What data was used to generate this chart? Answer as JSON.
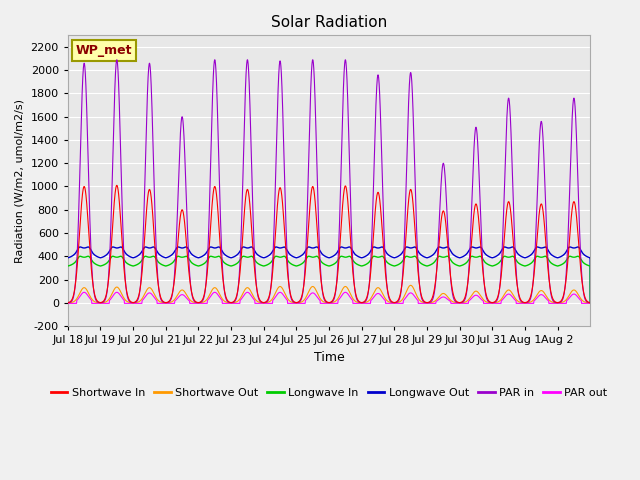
{
  "title": "Solar Radiation",
  "xlabel": "Time",
  "ylabel": "Radiation (W/m2, umol/m2/s)",
  "ylim": [
    -200,
    2300
  ],
  "yticks": [
    -200,
    0,
    200,
    400,
    600,
    800,
    1000,
    1200,
    1400,
    1600,
    1800,
    2000,
    2200
  ],
  "station_label": "WP_met",
  "num_days": 16,
  "xtick_labels": [
    "Jul 18",
    "Jul 19",
    "Jul 20",
    "Jul 21",
    "Jul 22",
    "Jul 23",
    "Jul 24",
    "Jul 25",
    "Jul 26",
    "Jul 27",
    "Jul 28",
    "Jul 29",
    "Jul 30",
    "Jul 31",
    "Aug 1",
    "Aug 2"
  ],
  "colors": {
    "shortwave_in": "#ff0000",
    "shortwave_out": "#ff9900",
    "longwave_in": "#00cc00",
    "longwave_out": "#0000cc",
    "par_in": "#9900cc",
    "par_out": "#ff00ff"
  },
  "legend_labels": [
    "Shortwave In",
    "Shortwave Out",
    "Longwave In",
    "Longwave Out",
    "PAR in",
    "PAR out"
  ],
  "background_color": "#e8e8e8",
  "grid_color": "#ffffff",
  "shortwave_in_peaks": [
    1000,
    1010,
    975,
    800,
    1000,
    975,
    990,
    1000,
    1005,
    950,
    975,
    790,
    850,
    870,
    850,
    870
  ],
  "shortwave_out_peaks": [
    130,
    135,
    130,
    110,
    130,
    130,
    140,
    140,
    140,
    130,
    150,
    80,
    100,
    110,
    105,
    110
  ],
  "longwave_in_base": 330,
  "longwave_in_day_peak": 400,
  "longwave_in_night": 310,
  "longwave_out_base": 400,
  "longwave_out_day_peak": 480,
  "longwave_out_night": 380,
  "par_in_peaks": [
    2060,
    2090,
    2060,
    1600,
    2090,
    2090,
    2080,
    2090,
    2090,
    1960,
    1980,
    1200,
    1510,
    1760,
    1560,
    1760
  ],
  "par_out_peaks": [
    90,
    90,
    85,
    70,
    90,
    90,
    90,
    85,
    90,
    80,
    85,
    50,
    65,
    75,
    70,
    75
  ],
  "figsize": [
    6.4,
    4.8
  ],
  "dpi": 100
}
